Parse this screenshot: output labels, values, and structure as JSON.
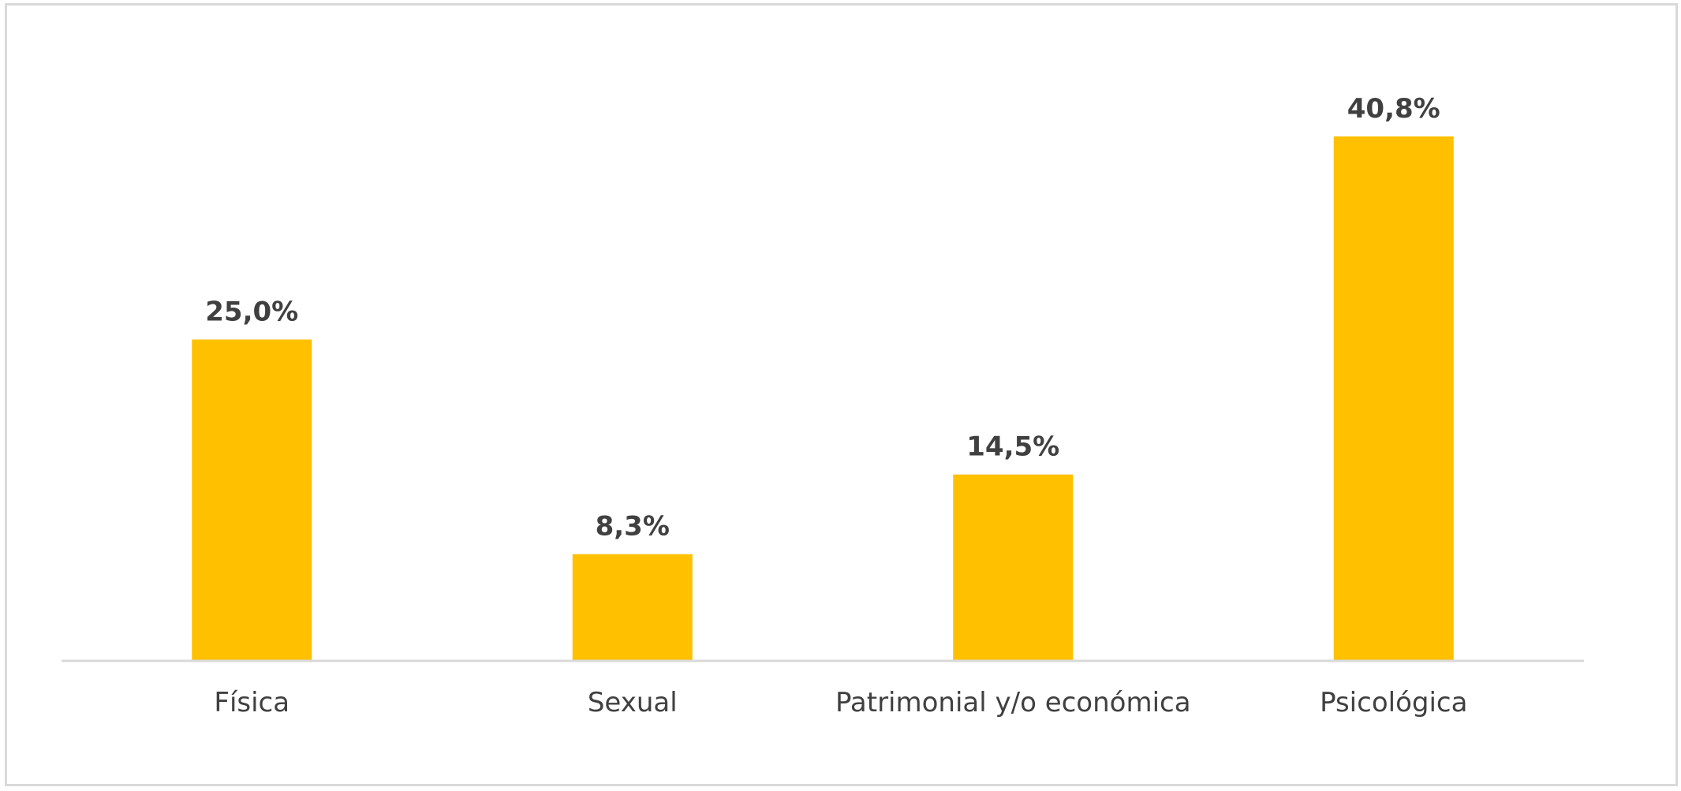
{
  "chart_data": {
    "type": "bar",
    "title": "",
    "xlabel": "",
    "ylabel": "",
    "categories": [
      "Física",
      "Sexual",
      "Patrimonial y/o económica",
      "Psicológica"
    ],
    "values": [
      25.0,
      8.3,
      14.5,
      40.8
    ],
    "data_labels": [
      "25,0%",
      "8,3%",
      "14,5%",
      "40,8%"
    ],
    "unit": "%",
    "ylim": [
      0,
      45
    ],
    "grid": false,
    "legend": "none",
    "bar_color": "#FFC000",
    "label_color": "#404040",
    "axis_color": "#D9D9D9"
  }
}
